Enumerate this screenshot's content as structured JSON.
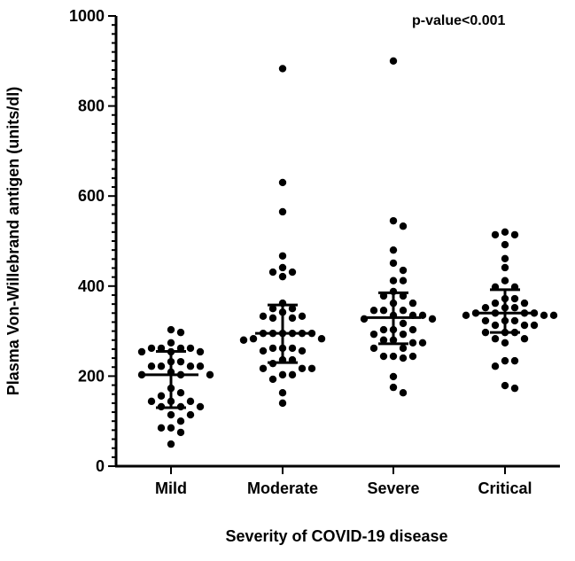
{
  "chart_data": {
    "type": "scatter",
    "subtype": "dot-plot with median and interquartile range",
    "title": "",
    "annotation": "p-value<0.001",
    "xlabel": "Severity of COVID-19 disease",
    "ylabel": "Plasma Von-Willebrand antigen (units/dl)",
    "ylim": [
      0,
      1000
    ],
    "yticks": [
      0,
      200,
      400,
      600,
      800,
      1000
    ],
    "grid": false,
    "categories": [
      "Mild",
      "Moderate",
      "Severe",
      "Critical"
    ],
    "series": [
      {
        "name": "Mild",
        "median": 203,
        "q1": 130,
        "q3": 255,
        "values": [
          303,
          297,
          274,
          262,
          262,
          262,
          262,
          254,
          254,
          254,
          232,
          232,
          222,
          222,
          222,
          222,
          209,
          203,
          203,
          203,
          173,
          163,
          156,
          144,
          144,
          144,
          132,
          132,
          132,
          114,
          114,
          100,
          85,
          85,
          75,
          49
        ]
      },
      {
        "name": "Moderate",
        "median": 295,
        "q1": 230,
        "q3": 358,
        "values": [
          883,
          630,
          565,
          467,
          441,
          431,
          431,
          421,
          362,
          350,
          350,
          342,
          333,
          333,
          329,
          329,
          295,
          295,
          295,
          295,
          295,
          295,
          283,
          283,
          280,
          262,
          262,
          262,
          256,
          256,
          236,
          236,
          228,
          217,
          217,
          217,
          203,
          203,
          193,
          163,
          140
        ]
      },
      {
        "name": "Severe",
        "median": 330,
        "q1": 272,
        "q3": 385,
        "values": [
          900,
          545,
          533,
          480,
          451,
          435,
          412,
          412,
          388,
          378,
          378,
          362,
          362,
          346,
          346,
          346,
          335,
          335,
          335,
          327,
          327,
          317,
          303,
          303,
          303,
          293,
          293,
          280,
          280,
          274,
          274,
          262,
          262,
          244,
          244,
          244,
          240,
          199,
          175,
          163
        ]
      },
      {
        "name": "Critical",
        "median": 340,
        "q1": 297,
        "q3": 392,
        "values": [
          520,
          514,
          514,
          492,
          461,
          441,
          412,
          398,
          398,
          372,
          372,
          362,
          362,
          352,
          352,
          352,
          340,
          340,
          340,
          340,
          335,
          335,
          335,
          323,
          323,
          323,
          313,
          313,
          313,
          297,
          297,
          297,
          283,
          283,
          274,
          234,
          234,
          222,
          179,
          173
        ]
      }
    ]
  }
}
